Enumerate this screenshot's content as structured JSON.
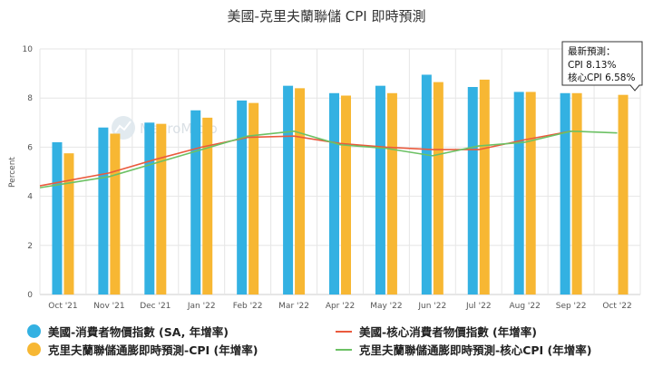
{
  "chart_data": {
    "type": "bar",
    "title": "美國-克里夫蘭聯儲 CPI 即時預測",
    "ylabel": "Percent",
    "ylim": [
      0,
      10
    ],
    "yticks": [
      0,
      2,
      4,
      6,
      8,
      10
    ],
    "categories": [
      "Oct '21",
      "Nov '21",
      "Dec '21",
      "Jan '22",
      "Feb '22",
      "Mar '22",
      "Apr '22",
      "May '22",
      "Jun '22",
      "Jul '22",
      "Aug '22",
      "Sep '22",
      "Oct '22"
    ],
    "grid": true,
    "legend_position": "bottom",
    "series": [
      {
        "name": "美國-消費者物價指數 (SA, 年增率)",
        "type": "bar",
        "color": "#33b1e2",
        "values": [
          6.2,
          6.8,
          7.0,
          7.5,
          7.9,
          8.5,
          8.2,
          8.5,
          8.95,
          8.45,
          8.25,
          8.2,
          null
        ]
      },
      {
        "name": "克里夫蘭聯儲通膨即時預測-CPI (年增率)",
        "type": "bar",
        "color": "#f7b733",
        "values": [
          5.75,
          6.55,
          6.95,
          7.2,
          7.8,
          8.4,
          8.1,
          8.2,
          8.65,
          8.75,
          8.25,
          8.2,
          8.13
        ]
      },
      {
        "name": "美國-核心消費者物價指數 (年增率)",
        "type": "line",
        "color": "#ea5a3d",
        "values": [
          4.6,
          4.95,
          5.5,
          6.0,
          6.4,
          6.45,
          6.15,
          6.0,
          5.9,
          5.9,
          6.3,
          6.65,
          null
        ]
      },
      {
        "name": "克里夫蘭聯儲通膨即時預測-核心CPI (年增率)",
        "type": "line",
        "color": "#6cc164",
        "values": [
          4.5,
          4.8,
          5.35,
          5.9,
          6.45,
          6.65,
          6.1,
          5.95,
          5.65,
          6.05,
          6.2,
          6.65,
          6.58
        ]
      }
    ],
    "tooltip": {
      "title": "最新預測：",
      "lines": [
        "CPI  8.13%",
        "核心CPI 6.58%"
      ]
    }
  },
  "watermark": "MacroMicro"
}
